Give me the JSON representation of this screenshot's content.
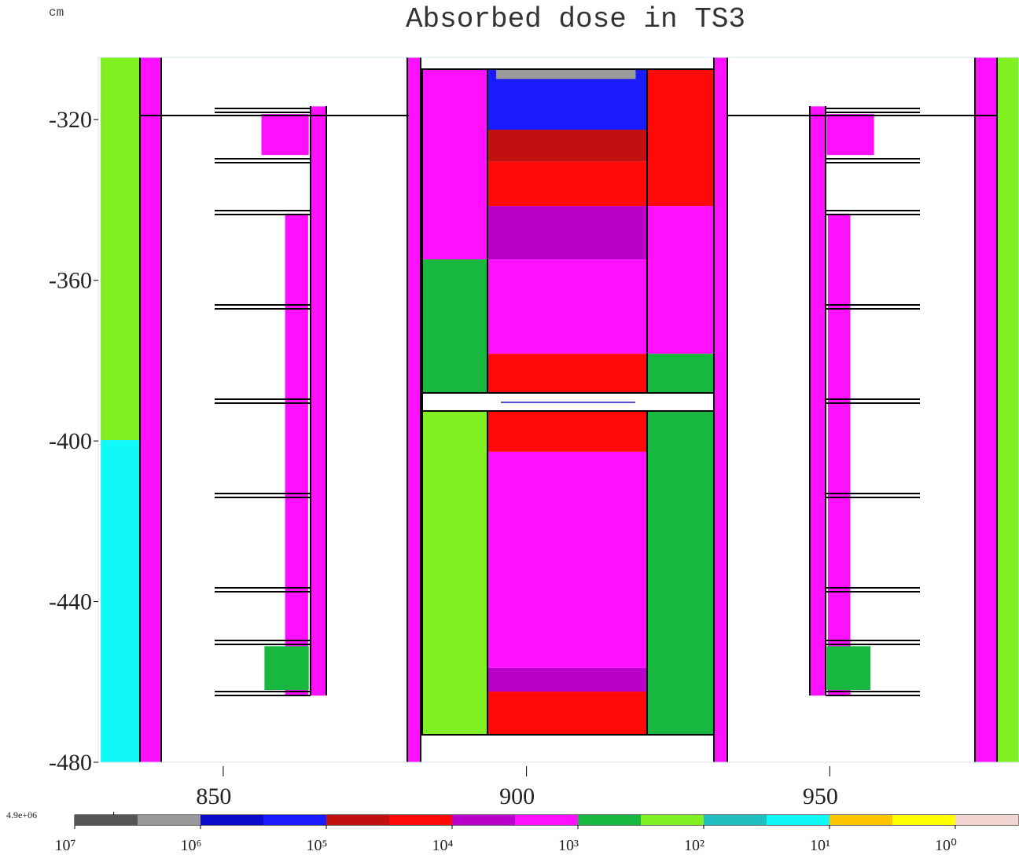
{
  "chart_data": {
    "type": "heatmap",
    "title": "Absorbed dose in TS3",
    "unit_label": "cm",
    "xlim": [
      829.4,
      981.2
    ],
    "xticks": [
      850,
      900,
      950
    ],
    "ylim": [
      -480,
      -304.5
    ],
    "yticks": [
      -320,
      -360,
      -400,
      -440,
      -480
    ],
    "regions": [
      {
        "x0": 829.8,
        "x1": 836.3,
        "y0": -304.5,
        "y1": -399.8,
        "dose": 200
      },
      {
        "x0": 829.8,
        "x1": 836.3,
        "y0": -399.8,
        "y1": -480,
        "dose": 30
      },
      {
        "x0": 836.3,
        "x1": 839.8,
        "y0": -304.5,
        "y1": -480,
        "dose": 2000
      },
      {
        "x0": 973.8,
        "x1": 977.5,
        "y0": -304.5,
        "y1": -480,
        "dose": 2000
      },
      {
        "x0": 977.5,
        "x1": 981.2,
        "y0": -304.5,
        "y1": -480,
        "dose": 200
      },
      {
        "x0": 864.4,
        "x1": 867.0,
        "y0": -316.7,
        "y1": -463.4,
        "dose": 2000
      },
      {
        "x0": 860.2,
        "x1": 864.0,
        "y0": -343.4,
        "y1": -463.4,
        "dose": 2000
      },
      {
        "x0": 856.3,
        "x1": 864.1,
        "y0": -318.6,
        "y1": -328.8,
        "dose": 2000
      },
      {
        "x0": 856.8,
        "x1": 864.1,
        "y0": -451.1,
        "y1": -462.0,
        "dose": 700
      },
      {
        "x0": 946.6,
        "x1": 949.2,
        "y0": -316.7,
        "y1": -463.4,
        "dose": 2000
      },
      {
        "x0": 949.7,
        "x1": 953.4,
        "y0": -343.4,
        "y1": -463.4,
        "dose": 2000
      },
      {
        "x0": 949.5,
        "x1": 957.3,
        "y0": -318.6,
        "y1": -328.8,
        "dose": 2000
      },
      {
        "x0": 949.5,
        "x1": 956.7,
        "y0": -451.1,
        "y1": -462.0,
        "dose": 700
      },
      {
        "x0": 880.3,
        "x1": 882.5,
        "y0": -304.5,
        "y1": -480,
        "dose": 2000
      },
      {
        "x0": 930.8,
        "x1": 933.0,
        "y0": -304.5,
        "y1": -480,
        "dose": 2000
      },
      {
        "x0": 882.8,
        "x1": 893.5,
        "y0": -307.5,
        "y1": -354.8,
        "dose": 2000
      },
      {
        "x0": 882.8,
        "x1": 893.5,
        "y0": -354.8,
        "y1": -388.1,
        "dose": 700
      },
      {
        "x0": 882.8,
        "x1": 893.5,
        "y0": -392.6,
        "y1": -473.2,
        "dose": 250
      },
      {
        "x0": 893.5,
        "x1": 919.8,
        "y0": -307.5,
        "y1": -322.5,
        "dose": 300000
      },
      {
        "x0": 893.5,
        "x1": 919.8,
        "y0": -322.5,
        "y1": -330.4,
        "dose": 60000
      },
      {
        "x0": 893.5,
        "x1": 919.8,
        "y0": -330.4,
        "y1": -341.5,
        "dose": 20000
      },
      {
        "x0": 893.5,
        "x1": 919.8,
        "y0": -341.5,
        "y1": -354.8,
        "dose": 5000
      },
      {
        "x0": 893.5,
        "x1": 919.8,
        "y0": -354.8,
        "y1": -378.3,
        "dose": 2000
      },
      {
        "x0": 893.5,
        "x1": 919.8,
        "y0": -378.3,
        "y1": -388.1,
        "dose": 20000
      },
      {
        "x0": 893.5,
        "x1": 919.8,
        "y0": -392.6,
        "y1": -402.7,
        "dose": 20000
      },
      {
        "x0": 893.5,
        "x1": 919.8,
        "y0": -402.7,
        "y1": -456.5,
        "dose": 2000
      },
      {
        "x0": 893.5,
        "x1": 919.8,
        "y0": -456.5,
        "y1": -462.4,
        "dose": 5000
      },
      {
        "x0": 893.5,
        "x1": 919.8,
        "y0": -462.4,
        "y1": -473.2,
        "dose": 20000
      },
      {
        "x0": 895.0,
        "x1": 918.0,
        "y0": -307.5,
        "y1": -309.9,
        "dose": 2000000
      },
      {
        "x0": 919.8,
        "x1": 930.8,
        "y0": -307.5,
        "y1": -341.5,
        "dose": 20000
      },
      {
        "x0": 919.8,
        "x1": 930.8,
        "y0": -341.5,
        "y1": -378.3,
        "dose": 2000
      },
      {
        "x0": 919.8,
        "x1": 930.8,
        "y0": -378.3,
        "y1": -388.1,
        "dose": 700
      },
      {
        "x0": 919.8,
        "x1": 930.8,
        "y0": -392.6,
        "y1": -473.2,
        "dose": 700
      }
    ],
    "colorbar_scale": "log",
    "colorbar_lim": [
      10000000,
      0.316
    ],
    "colorbar_colors": [
      "#555555",
      "#9a9a9a",
      "#0a0ac8",
      "#1a1aff",
      "#c01010",
      "#ff0808",
      "#b800c8",
      "#ff10ff",
      "#18b840",
      "#80f020",
      "#20c0c0",
      "#10f8f8",
      "#ffc400",
      "#ffff00",
      "#f2d4d0"
    ],
    "colorbar_ticks": [
      {
        "value": 10000000,
        "label": "10⁷"
      },
      {
        "value": 1000000,
        "label": "10⁶"
      },
      {
        "value": 100000,
        "label": "10⁵"
      },
      {
        "value": 10000,
        "label": "10⁴"
      },
      {
        "value": 1000,
        "label": "10³"
      },
      {
        "value": 100,
        "label": "10²"
      },
      {
        "value": 10,
        "label": "10¹"
      },
      {
        "value": 1,
        "label": "10⁰"
      }
    ],
    "colorbar_max": {
      "value": 4900000,
      "label": "4.9e+06"
    }
  }
}
